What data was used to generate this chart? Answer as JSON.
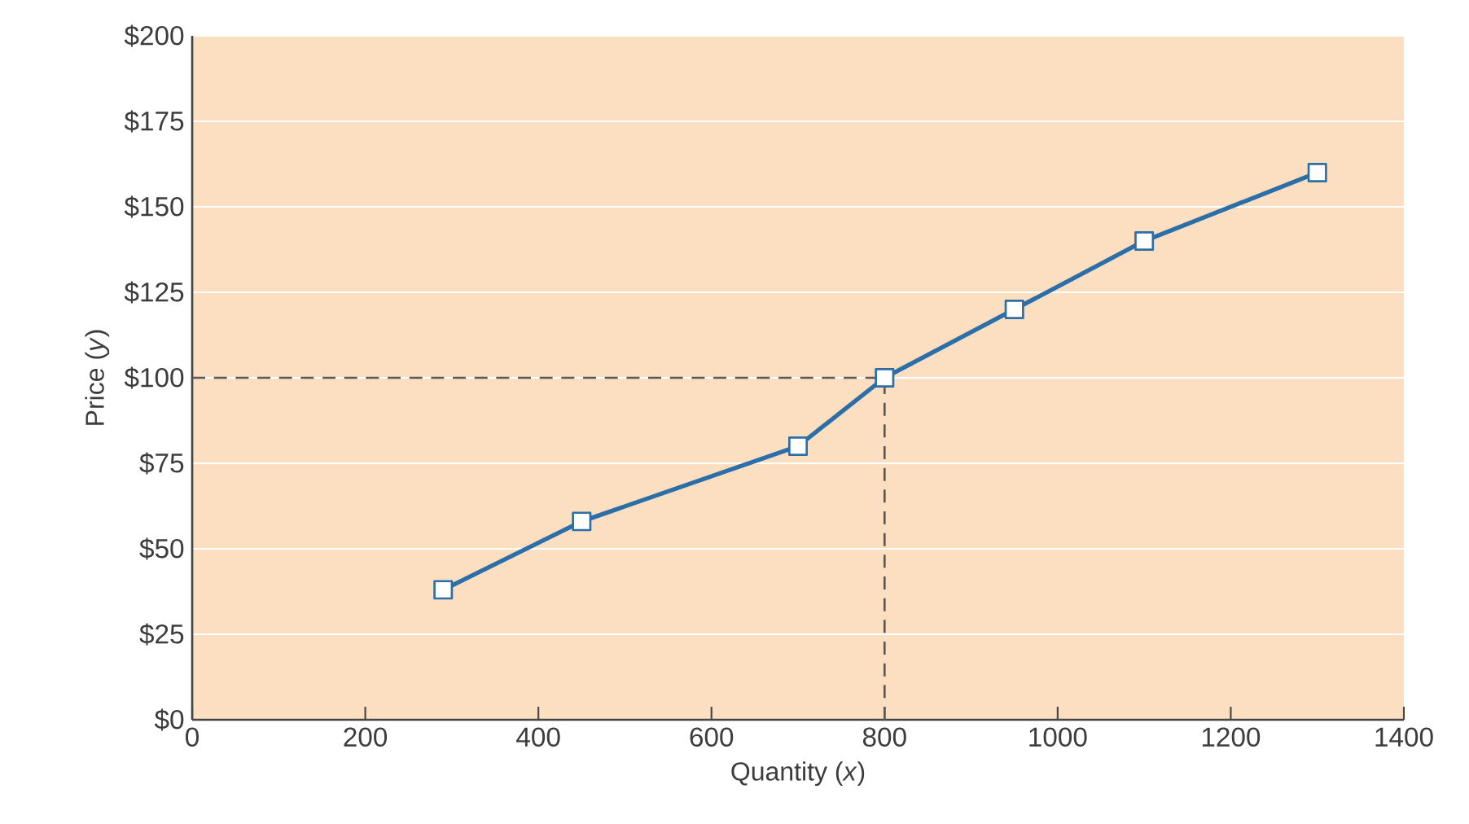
{
  "chart_data": {
    "type": "line",
    "xlabel": "Quantity (*x*)",
    "ylabel": "Price (*y*)",
    "x": [
      290,
      450,
      700,
      800,
      950,
      1100,
      1300
    ],
    "series": [
      {
        "color": "#2b6ea8",
        "values": [
          38,
          58,
          80,
          100,
          120,
          140,
          160
        ]
      }
    ],
    "xlim": [
      0,
      1400
    ],
    "xticks": [
      0,
      200,
      400,
      600,
      800,
      1000,
      1200,
      1400
    ],
    "ylim": [
      0,
      200
    ],
    "yticks": [
      {
        "value": 0,
        "label": "$0"
      },
      {
        "value": 25,
        "label": "$25"
      },
      {
        "value": 50,
        "label": "$50"
      },
      {
        "value": 75,
        "label": "$75"
      },
      {
        "value": 100,
        "label": "$100"
      },
      {
        "value": 125,
        "label": "$125"
      },
      {
        "value": 150,
        "label": "$150"
      },
      {
        "value": 175,
        "label": "$175"
      },
      {
        "value": 200,
        "label": "$200"
      }
    ],
    "ref_lines": [
      {
        "axis": "y",
        "value": 100,
        "color": "#5a5a5a",
        "line_style": "dashed"
      },
      {
        "axis": "x",
        "value": 800,
        "color": "#5a5a5a",
        "line_style": "dashed"
      }
    ],
    "grid": "y",
    "marker": "square",
    "line_style": "solid"
  }
}
